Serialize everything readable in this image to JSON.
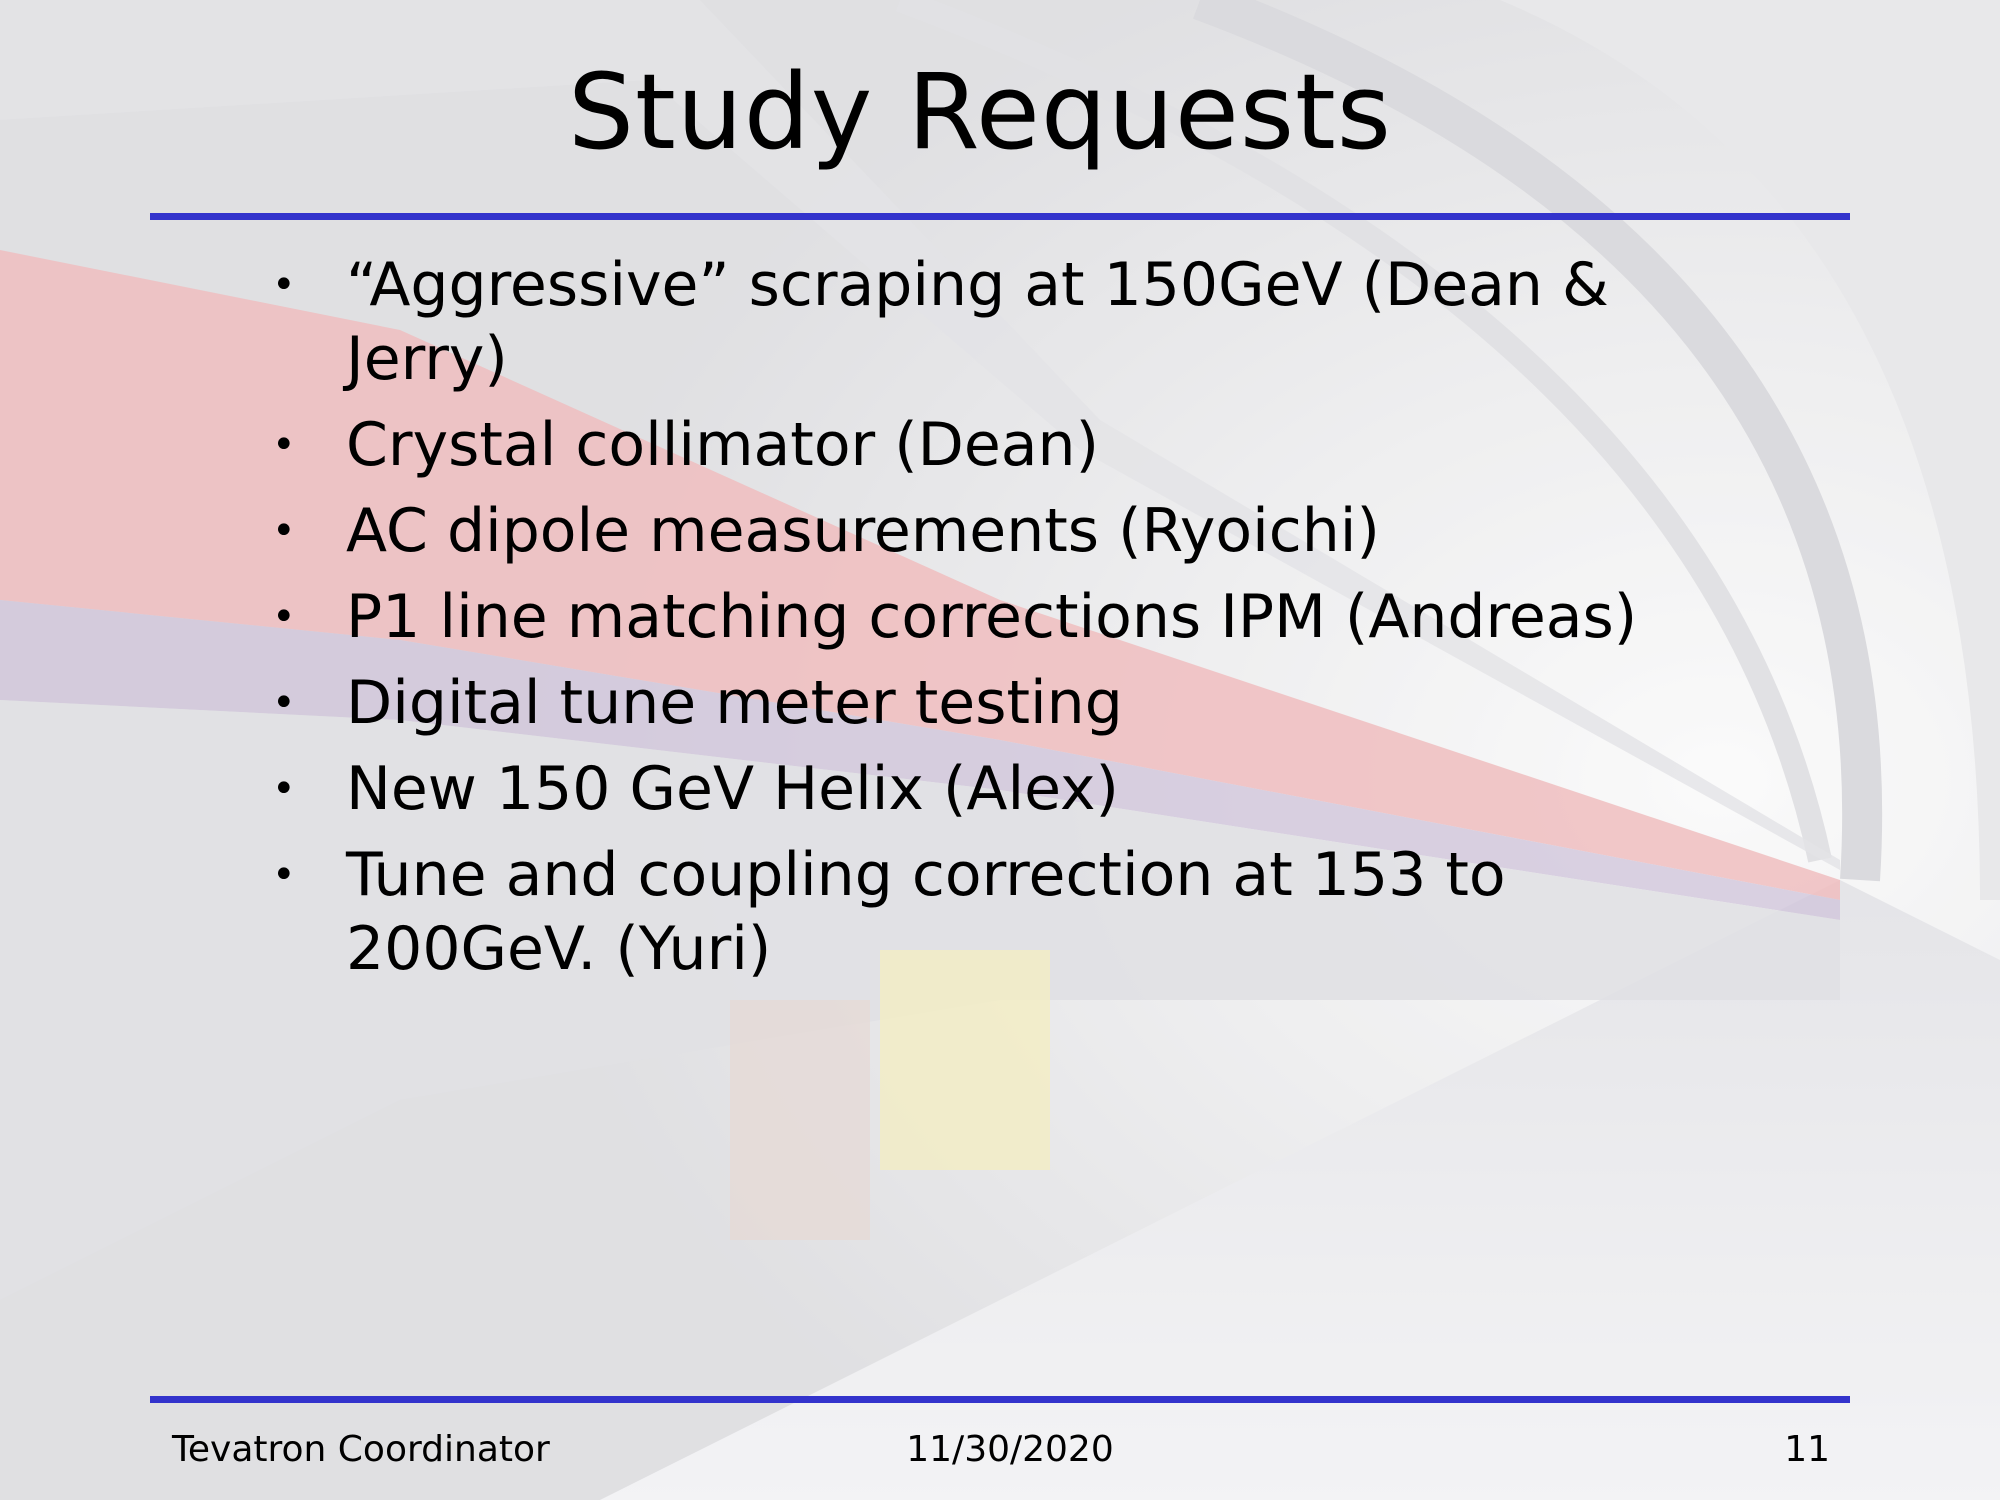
{
  "slide": {
    "title": "Study Requests",
    "bullets": [
      "“Aggressive” scraping at 150GeV (Dean & Jerry)",
      "Crystal collimator (Dean)",
      "AC dipole measurements (Ryoichi)",
      "P1 line matching corrections IPM (Andreas)",
      "Digital tune meter testing",
      "New 150 GeV Helix (Alex)",
      "Tune and coupling correction at 153 to 200GeV. (Yuri)"
    ],
    "bullet_glyph": "•",
    "footer": {
      "left": "Tevatron Coordinator",
      "center": "11/30/2020",
      "right": "11"
    },
    "colors": {
      "rule": "#3333cc"
    }
  }
}
